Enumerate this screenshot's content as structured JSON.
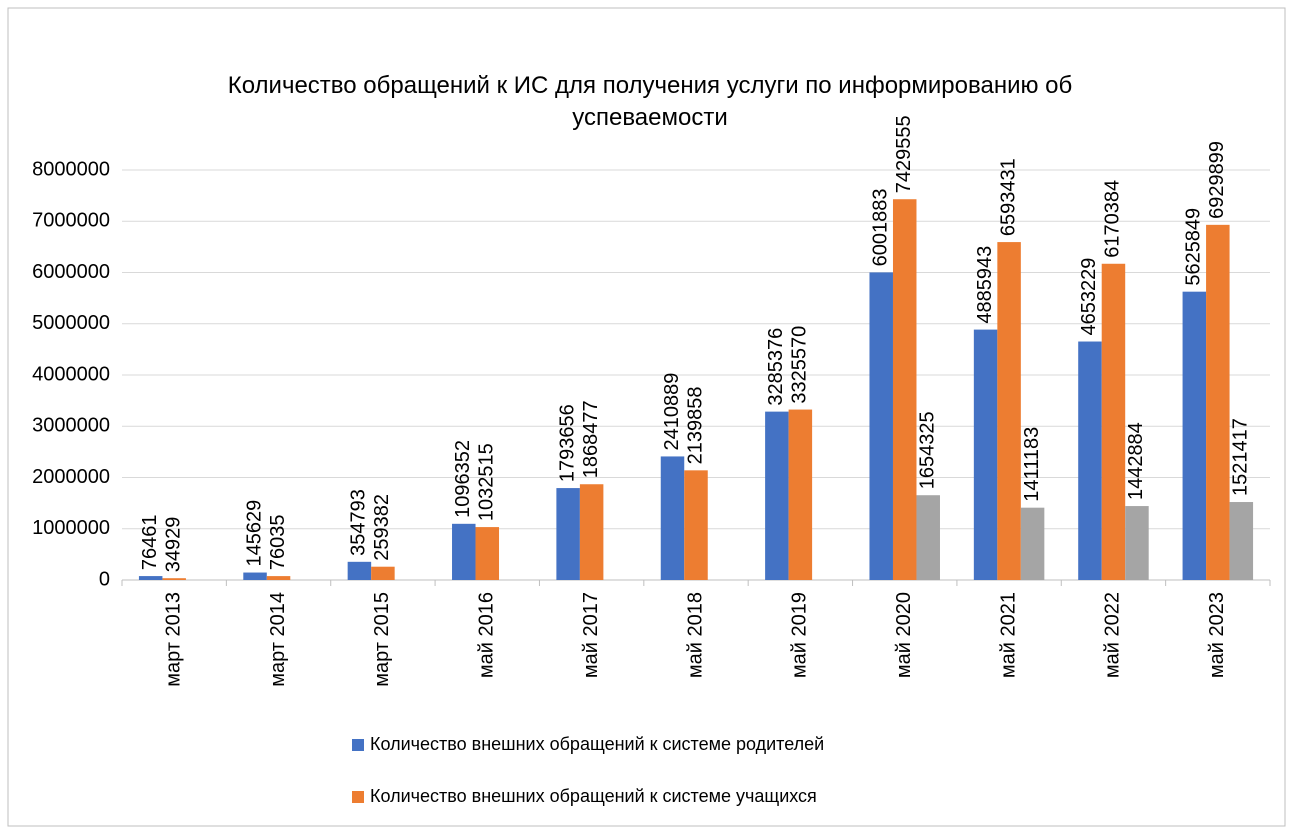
{
  "chart_data": {
    "type": "bar",
    "title": "Количество обращений к ИС для получения услуги по информированию об успеваемости",
    "categories": [
      "март 2013",
      "март 2014",
      "март 2015",
      "май 2016",
      "май 2017",
      "май 2018",
      "май 2019",
      "май 2020",
      "май 2021",
      "май 2022",
      "май 2023"
    ],
    "series": [
      {
        "name": "Количество внешних обращений к системе родителей",
        "color": "#4472c4",
        "values": [
          76461,
          145629,
          354793,
          1096352,
          1793656,
          2410889,
          3285376,
          6001883,
          4885943,
          4653229,
          5625849
        ]
      },
      {
        "name": "Количество внешних обращений к системе учащихся",
        "color": "#ed7d31",
        "values": [
          34929,
          76035,
          259382,
          1032515,
          1868477,
          2139858,
          3325570,
          7429555,
          6593431,
          6170384,
          6929899
        ]
      },
      {
        "color": "#a5a5a5",
        "values": [
          null,
          null,
          null,
          null,
          null,
          null,
          null,
          1654325,
          1411183,
          1442884,
          1521417
        ]
      }
    ],
    "ylim": [
      0,
      8000000
    ],
    "yticks": [
      0,
      1000000,
      2000000,
      3000000,
      4000000,
      5000000,
      6000000,
      7000000,
      8000000
    ],
    "grid": true
  }
}
